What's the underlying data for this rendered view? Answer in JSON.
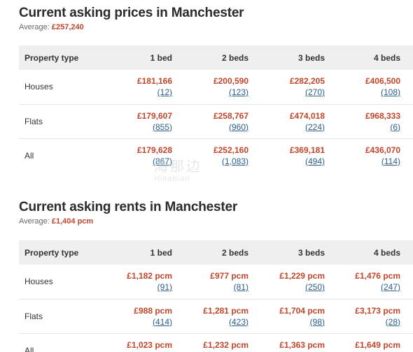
{
  "price_section": {
    "title": "Current asking prices in Manchester",
    "average_label": "Average:",
    "average_value": "£257,240",
    "headers": [
      "Property type",
      "1 bed",
      "2 beds",
      "3 beds",
      "4 beds"
    ],
    "rows": [
      {
        "type": "Houses",
        "cells": [
          {
            "price": "£181,166",
            "count": "(12)"
          },
          {
            "price": "£200,590",
            "count": "(123)"
          },
          {
            "price": "£282,205",
            "count": "(270)"
          },
          {
            "price": "£406,500",
            "count": "(108)"
          }
        ]
      },
      {
        "type": "Flats",
        "cells": [
          {
            "price": "£179,607",
            "count": "(855)"
          },
          {
            "price": "£258,767",
            "count": "(960)"
          },
          {
            "price": "£474,018",
            "count": "(224)"
          },
          {
            "price": "£968,333",
            "count": "(6)"
          }
        ]
      },
      {
        "type": "All",
        "cells": [
          {
            "price": "£179,628",
            "count": "(867)"
          },
          {
            "price": "£252,160",
            "count": "(1,083)"
          },
          {
            "price": "£369,181",
            "count": "(494)"
          },
          {
            "price": "£436,070",
            "count": "(114)"
          }
        ]
      }
    ]
  },
  "rent_section": {
    "title": "Current asking rents in Manchester",
    "average_label": "Average:",
    "average_value": "£1,404 pcm",
    "headers": [
      "Property type",
      "1 bed",
      "2 beds",
      "3 beds",
      "4 beds"
    ],
    "rows": [
      {
        "type": "Houses",
        "cells": [
          {
            "price": "£1,182 pcm",
            "count": "(91)"
          },
          {
            "price": "£977 pcm",
            "count": "(81)"
          },
          {
            "price": "£1,229 pcm",
            "count": "(250)"
          },
          {
            "price": "£1,476 pcm",
            "count": "(247)"
          }
        ]
      },
      {
        "type": "Flats",
        "cells": [
          {
            "price": "£988 pcm",
            "count": "(414)"
          },
          {
            "price": "£1,281 pcm",
            "count": "(423)"
          },
          {
            "price": "£1,704 pcm",
            "count": "(98)"
          },
          {
            "price": "£3,173 pcm",
            "count": "(28)"
          }
        ]
      },
      {
        "type": "All",
        "cells": [
          {
            "price": "£1,023 pcm",
            "count": ""
          },
          {
            "price": "£1,232 pcm",
            "count": ""
          },
          {
            "price": "£1,363 pcm",
            "count": ""
          },
          {
            "price": "£1,649 pcm",
            "count": ""
          }
        ]
      }
    ]
  },
  "watermark": {
    "text_cn": "海那边",
    "text_en": "Hinabian"
  },
  "colors": {
    "price": "#c0452a",
    "count_link": "#2a5d8a",
    "header_bg": "#efefef"
  }
}
